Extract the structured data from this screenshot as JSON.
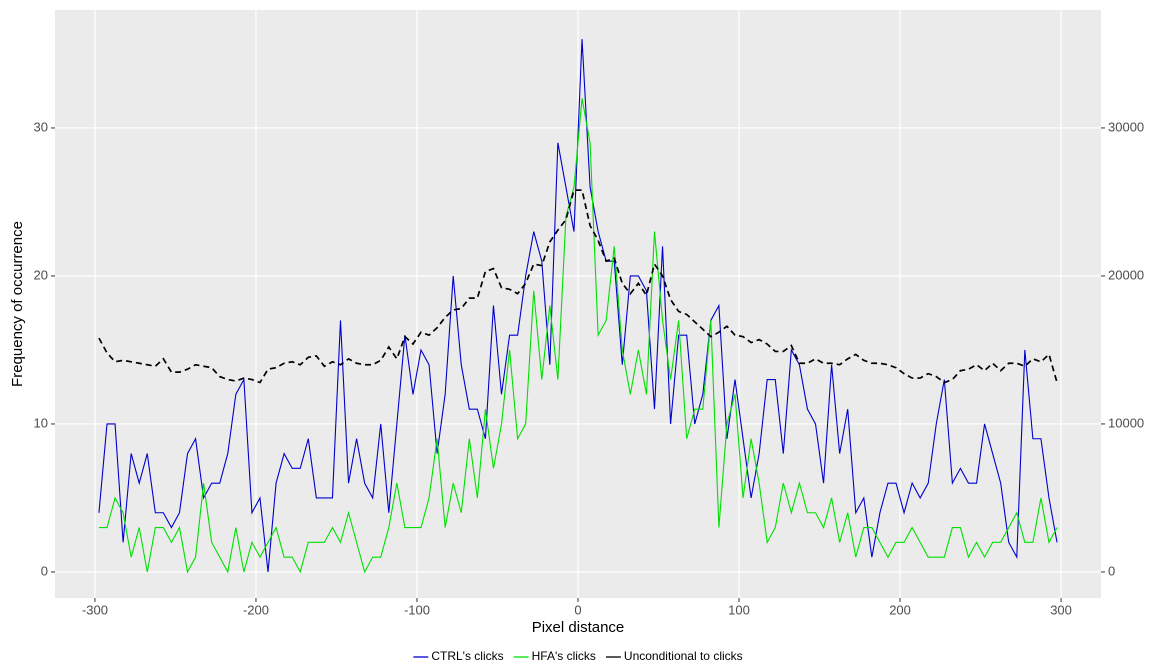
{
  "chart_data": {
    "type": "line",
    "x_label": "Pixel distance",
    "y_label": "Frequency of occurrence",
    "xlim": [
      -324.8,
      324.8
    ],
    "ylim": [
      -1.76,
      37.97
    ],
    "y2lim": [
      -1760,
      37970
    ],
    "xticks": [
      -300,
      -200,
      -100,
      0,
      100,
      200,
      300
    ],
    "yticks": [
      0,
      10,
      20,
      30
    ],
    "y2ticks": [
      0,
      10000,
      20000,
      30000
    ],
    "grid": true,
    "legend": "bottom",
    "x": [
      -297.5,
      -292.5,
      -287.5,
      -282.5,
      -277.5,
      -272.5,
      -267.5,
      -262.5,
      -257.5,
      -252.5,
      -247.5,
      -242.5,
      -237.5,
      -232.5,
      -227.5,
      -222.5,
      -217.5,
      -212.5,
      -207.5,
      -202.5,
      -197.5,
      -192.5,
      -187.5,
      -182.5,
      -177.5,
      -172.5,
      -167.5,
      -162.5,
      -157.5,
      -152.5,
      -147.5,
      -142.5,
      -137.5,
      -132.5,
      -127.5,
      -122.5,
      -117.5,
      -112.5,
      -107.5,
      -102.5,
      -97.5,
      -92.5,
      -87.5,
      -82.5,
      -77.5,
      -72.5,
      -67.5,
      -62.5,
      -57.5,
      -52.5,
      -47.5,
      -42.5,
      -37.5,
      -32.5,
      -27.5,
      -22.5,
      -17.5,
      -12.5,
      -7.5,
      -2.5,
      2.5,
      7.5,
      12.5,
      17.5,
      22.5,
      27.5,
      32.5,
      37.5,
      42.5,
      47.5,
      52.5,
      57.5,
      62.5,
      67.5,
      72.5,
      77.5,
      82.5,
      87.5,
      92.5,
      97.5,
      102.5,
      107.5,
      112.5,
      117.5,
      122.5,
      127.5,
      132.5,
      137.5,
      142.5,
      147.5,
      152.5,
      157.5,
      162.5,
      167.5,
      172.5,
      177.5,
      182.5,
      187.5,
      192.5,
      197.5,
      202.5,
      207.5,
      212.5,
      217.5,
      222.5,
      227.5,
      232.5,
      237.5,
      242.5,
      247.5,
      252.5,
      257.5,
      262.5,
      267.5,
      272.5,
      277.5,
      282.5,
      287.5,
      292.5,
      297.5
    ],
    "series": [
      {
        "name": "CTRL's clicks",
        "color": "#0000cc",
        "linestyle": "solid",
        "values": [
          4,
          10,
          10,
          2,
          8,
          6,
          8,
          4,
          4,
          3,
          4,
          8,
          9,
          5,
          6,
          6,
          8,
          12,
          13,
          4,
          5,
          0,
          6,
          8,
          7,
          7,
          9,
          5,
          5,
          5,
          17,
          6,
          9,
          6,
          5,
          10,
          4,
          10,
          16,
          12,
          15,
          14,
          8,
          12,
          20,
          14,
          11,
          11,
          9,
          18,
          12,
          16,
          16,
          20,
          23,
          21,
          14,
          29,
          26,
          23,
          36,
          26,
          23,
          21,
          21,
          14,
          20,
          20,
          19,
          11,
          22,
          10,
          16,
          16,
          10,
          12,
          17,
          18,
          9,
          13,
          9,
          5,
          8,
          13,
          13,
          8,
          15,
          14,
          11,
          10,
          6,
          14,
          8,
          11,
          4,
          5,
          1,
          4,
          6,
          6,
          4,
          6,
          5,
          6,
          10,
          13,
          6,
          7,
          6,
          6,
          10,
          8,
          6,
          2,
          1,
          15,
          9,
          9,
          5,
          2
        ]
      },
      {
        "name": "HFA's clicks",
        "color": "#00e000",
        "linestyle": "solid",
        "values": [
          3,
          3,
          5,
          4,
          1,
          3,
          0,
          3,
          3,
          2,
          3,
          0,
          1,
          6,
          2,
          1,
          0,
          3,
          0,
          2,
          1,
          2,
          3,
          1,
          1,
          0,
          2,
          2,
          2,
          3,
          2,
          4,
          2,
          0,
          1,
          1,
          3,
          6,
          3,
          3,
          3,
          5,
          9,
          3,
          6,
          4,
          9,
          5,
          11,
          7,
          10,
          15,
          9,
          10,
          19,
          13,
          18,
          13,
          24,
          26,
          32,
          29,
          16,
          17,
          22,
          15,
          12,
          15,
          12,
          23,
          17,
          13,
          17,
          9,
          11,
          11,
          17,
          3,
          10,
          12,
          5,
          9,
          6,
          2,
          3,
          6,
          4,
          6,
          4,
          4,
          3,
          5,
          2,
          4,
          1,
          3,
          3,
          2,
          1,
          2,
          2,
          3,
          2,
          1,
          1,
          1,
          3,
          3,
          1,
          2,
          1,
          2,
          2,
          3,
          4,
          2,
          2,
          5,
          2,
          3
        ]
      },
      {
        "name": "Unconditional to clicks",
        "color": "#000000",
        "linestyle": "dashed",
        "axis": "y2",
        "values": [
          15800,
          14800,
          14200,
          14300,
          14200,
          14100,
          14000,
          13900,
          14400,
          13500,
          13500,
          13700,
          14000,
          13900,
          13800,
          13200,
          13000,
          12900,
          13100,
          13000,
          12800,
          13700,
          13800,
          14100,
          14200,
          14000,
          14500,
          14600,
          13900,
          14200,
          14000,
          14400,
          14100,
          14000,
          14000,
          14300,
          15200,
          14400,
          15900,
          15400,
          16200,
          16000,
          16500,
          17200,
          17700,
          17800,
          18500,
          18500,
          20300,
          20500,
          19200,
          19100,
          18800,
          19500,
          20800,
          20700,
          22300,
          23100,
          23800,
          25800,
          25800,
          23400,
          22400,
          21000,
          21200,
          19500,
          18800,
          19500,
          18700,
          20800,
          20000,
          18400,
          17600,
          17400,
          16900,
          16400,
          15900,
          16200,
          16600,
          16000,
          15900,
          15500,
          15700,
          15400,
          14900,
          14900,
          15300,
          14100,
          14100,
          14400,
          14100,
          14100,
          14000,
          14400,
          14700,
          14300,
          14100,
          14100,
          14000,
          13800,
          13400,
          13100,
          13100,
          13400,
          13200,
          12800,
          13000,
          13600,
          13700,
          14000,
          13600,
          14100,
          13600,
          14100,
          14100,
          13900,
          14400,
          14200,
          14700,
          12800
        ]
      }
    ]
  }
}
